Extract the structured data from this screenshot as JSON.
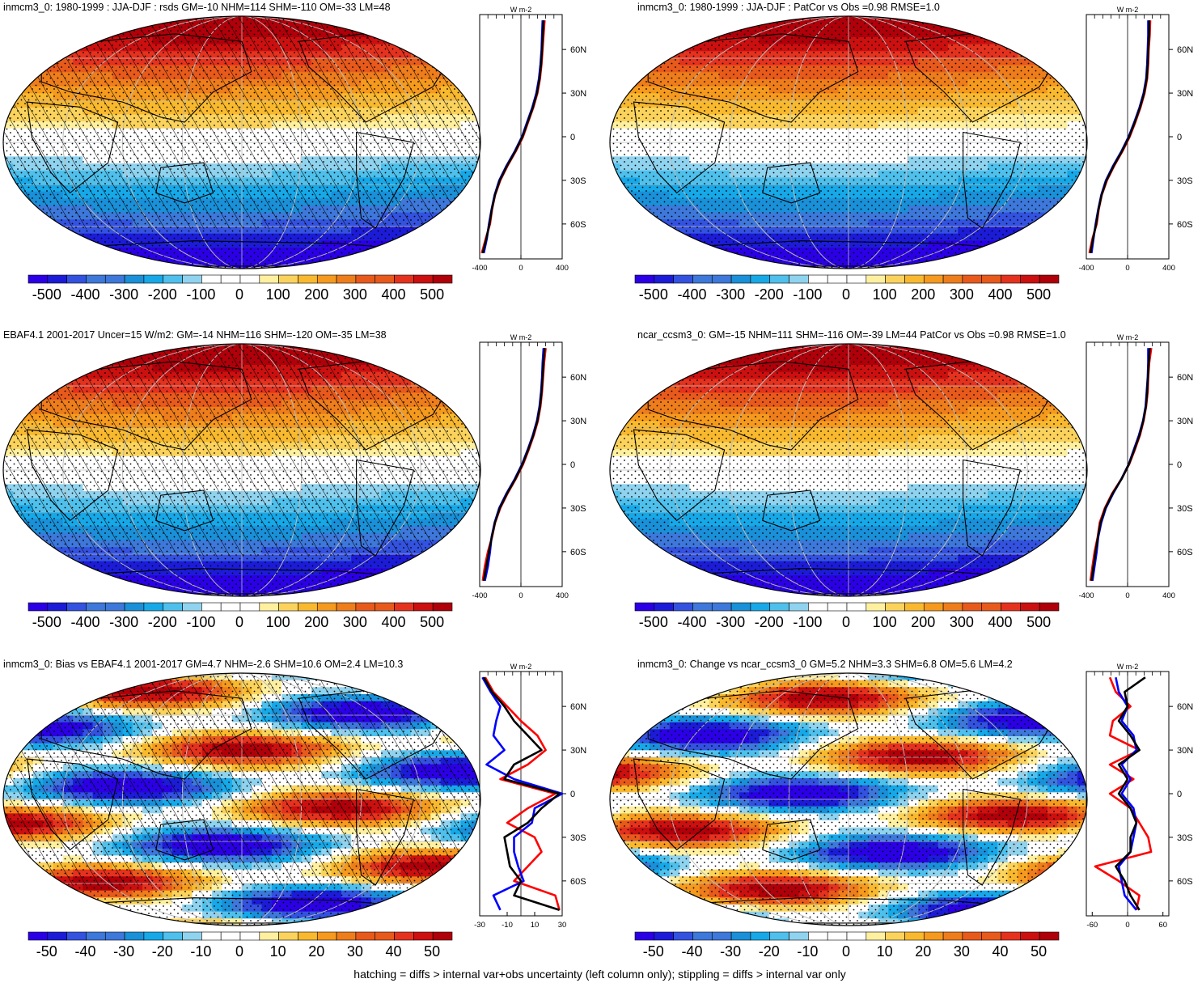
{
  "colors": {
    "palette": [
      "#2b00e6",
      "#1c1cd8",
      "#3352e0",
      "#3d78da",
      "#1a90d8",
      "#17a8e8",
      "#4fc0ec",
      "#8fd3ef",
      "#ffffff",
      "#ffffff",
      "#fff0a0",
      "#fbd35c",
      "#f9b92f",
      "#f59a1e",
      "#ee7d1c",
      "#e85a1c",
      "#e5321e",
      "#cc1010",
      "#b0000a"
    ],
    "hatch": "#000000",
    "grid": "#bbbbbb",
    "line_obs": "#0000ff",
    "line_model": "#ff0000",
    "line_ens": "#000000"
  },
  "footer": "hatching = diffs > internal var+obs uncertainty (left column only); stippling = diffs > internal var only",
  "chart_data": [
    {
      "type": "heatmap",
      "title": "inmcm3_0: 1980-1999 : JJA-DJF : rsds GM=-10 NHM=114 SHM=-110 OM=-33 LM=48",
      "colorbar_ticks": [
        "-500",
        "-400",
        "-300",
        "-200",
        "-100",
        "0",
        "100",
        "200",
        "300",
        "400",
        "500"
      ],
      "pattern": "hatch+stipple",
      "zonal": {
        "unit": "W m-2",
        "xlim": [
          -400,
          400
        ],
        "xticks": [
          "-400",
          "0",
          "400"
        ],
        "yticks": [
          "60N",
          "30N",
          "0",
          "30S",
          "60S"
        ],
        "lat": [
          80,
          70,
          60,
          50,
          40,
          30,
          20,
          10,
          0,
          -10,
          -20,
          -30,
          -40,
          -50,
          -60,
          -70,
          -80
        ],
        "series": [
          {
            "color": "#ff0000",
            "values": [
              230,
              220,
              210,
              200,
              185,
              160,
              120,
              70,
              20,
              -50,
              -130,
              -200,
              -250,
              -280,
              -300,
              -340,
              -380
            ]
          },
          {
            "color": "#0000ff",
            "values": [
              210,
              205,
              200,
              190,
              175,
              150,
              110,
              60,
              10,
              -60,
              -140,
              -210,
              -255,
              -285,
              -310,
              -330,
              -360
            ]
          },
          {
            "color": "#000000",
            "values": [
              220,
              212,
              205,
              195,
              180,
              155,
              115,
              65,
              15,
              -55,
              -135,
              -205,
              -252,
              -282,
              -305,
              -335,
              -370
            ]
          }
        ]
      }
    },
    {
      "type": "heatmap",
      "title": "inmcm3_0: 1980-1999 : JJA-DJF : PatCor vs Obs =0.98 RMSE=1.0",
      "colorbar_ticks": [
        "-500",
        "-400",
        "-300",
        "-200",
        "-100",
        "0",
        "100",
        "200",
        "300",
        "400",
        "500"
      ],
      "pattern": "stipple",
      "zonal": {
        "unit": "W m-2",
        "xlim": [
          -400,
          400
        ],
        "xticks": [
          "-400",
          "0",
          "400"
        ],
        "yticks": [
          "60N",
          "30N",
          "0",
          "30S",
          "60S"
        ],
        "lat": [
          80,
          70,
          60,
          50,
          40,
          30,
          20,
          10,
          0,
          -10,
          -20,
          -30,
          -40,
          -50,
          -60,
          -70,
          -80
        ],
        "series": [
          {
            "color": "#ff0000",
            "values": [
              220,
              215,
              205,
              200,
              190,
              165,
              125,
              75,
              20,
              -50,
              -130,
              -200,
              -250,
              -280,
              -300,
              -340,
              -370
            ]
          },
          {
            "color": "#0000ff",
            "values": [
              200,
              200,
              195,
              190,
              180,
              155,
              115,
              65,
              10,
              -60,
              -140,
              -210,
              -255,
              -285,
              -310,
              -330,
              -350
            ]
          },
          {
            "color": "#000000",
            "values": [
              210,
              208,
              200,
              195,
              185,
              160,
              120,
              70,
              15,
              -55,
              -135,
              -205,
              -252,
              -282,
              -305,
              -335,
              -360
            ]
          }
        ]
      }
    },
    {
      "type": "heatmap",
      "title": "EBAF4.1 2001-2017 Uncer=15 W/m2: GM=-14 NHM=116 SHM=-120 OM=-35 LM=38",
      "colorbar_ticks": [
        "-500",
        "-400",
        "-300",
        "-200",
        "-100",
        "0",
        "100",
        "200",
        "300",
        "400",
        "500"
      ],
      "pattern": "hatch+stipple",
      "zonal": {
        "unit": "W m-2",
        "xlim": [
          -400,
          400
        ],
        "xticks": [
          "-400",
          "0",
          "400"
        ],
        "yticks": [
          "60N",
          "30N",
          "0",
          "30S",
          "60S"
        ],
        "lat": [
          80,
          70,
          60,
          50,
          40,
          30,
          20,
          10,
          0,
          -10,
          -20,
          -30,
          -40,
          -50,
          -60,
          -70,
          -80
        ],
        "series": [
          {
            "color": "#ff0000",
            "values": [
              240,
              225,
              215,
              205,
              190,
              165,
              125,
              75,
              20,
              -50,
              -130,
              -200,
              -250,
              -280,
              -320,
              -350,
              -370
            ]
          },
          {
            "color": "#0000ff",
            "values": [
              220,
              210,
              205,
              195,
              180,
              155,
              115,
              65,
              10,
              -60,
              -140,
              -210,
              -255,
              -285,
              -300,
              -320,
              -350
            ]
          },
          {
            "color": "#000000",
            "values": [
              230,
              218,
              210,
              200,
              185,
              160,
              120,
              70,
              15,
              -55,
              -135,
              -205,
              -252,
              -282,
              -310,
              -335,
              -360
            ]
          }
        ]
      }
    },
    {
      "type": "heatmap",
      "title": "ncar_ccsm3_0: GM=-15 NHM=111 SHM=-116 OM=-39 LM=44 PatCor vs Obs =0.98 RMSE=1.0",
      "colorbar_ticks": [
        "-500",
        "-400",
        "-300",
        "-200",
        "-100",
        "0",
        "100",
        "200",
        "300",
        "400",
        "500"
      ],
      "pattern": "stipple",
      "zonal": {
        "unit": "W m-2",
        "xlim": [
          -400,
          400
        ],
        "xticks": [
          "-400",
          "0",
          "400"
        ],
        "yticks": [
          "60N",
          "30N",
          "0",
          "30S",
          "60S"
        ],
        "lat": [
          80,
          70,
          60,
          50,
          40,
          30,
          20,
          10,
          0,
          -10,
          -20,
          -30,
          -40,
          -50,
          -60,
          -70,
          -80
        ],
        "series": [
          {
            "color": "#ff0000",
            "values": [
              230,
              210,
              200,
              195,
              180,
              155,
              120,
              70,
              15,
              -60,
              -150,
              -220,
              -270,
              -290,
              -320,
              -340,
              -360
            ]
          },
          {
            "color": "#0000ff",
            "values": [
              200,
              200,
              195,
              185,
              175,
              150,
              110,
              60,
              10,
              -60,
              -140,
              -210,
              -255,
              -285,
              -300,
              -320,
              -340
            ]
          },
          {
            "color": "#000000",
            "values": [
              215,
              205,
              198,
              190,
              178,
              152,
              115,
              65,
              12,
              -58,
              -145,
              -215,
              -262,
              -288,
              -310,
              -330,
              -350
            ]
          }
        ]
      }
    },
    {
      "type": "heatmap",
      "title": "inmcm3_0: Bias vs EBAF4.1 2001-2017 GM=4.7 NHM=-2.6 SHM=10.6 OM=2.4 LM=10.3",
      "colorbar_ticks": [
        "-50",
        "-40",
        "-30",
        "-20",
        "-10",
        "0",
        "10",
        "20",
        "30",
        "40",
        "50"
      ],
      "pattern": "hatch+stipple",
      "zonal": {
        "unit": "W m-2",
        "xlim": [
          -30,
          30
        ],
        "xticks": [
          "-30",
          "-10",
          "10",
          "30"
        ],
        "yticks": [
          "60N",
          "30N",
          "0",
          "30S",
          "60S"
        ],
        "lat": [
          80,
          70,
          60,
          50,
          40,
          30,
          20,
          10,
          0,
          -10,
          -20,
          -30,
          -40,
          -50,
          -60,
          -70,
          -80
        ],
        "series": [
          {
            "color": "#ff0000",
            "values": [
              -26,
              -20,
              -10,
              0,
              12,
              18,
              5,
              -15,
              25,
              5,
              -10,
              10,
              15,
              5,
              -5,
              25,
              28
            ]
          },
          {
            "color": "#0000ff",
            "values": [
              -28,
              -22,
              -15,
              -18,
              -20,
              -12,
              -25,
              -5,
              30,
              10,
              8,
              -5,
              -5,
              -2,
              2,
              -20,
              -15
            ]
          },
          {
            "color": "#000000",
            "values": [
              -27,
              -21,
              -12,
              -5,
              5,
              15,
              -5,
              -12,
              28,
              15,
              5,
              -12,
              -10,
              -8,
              0,
              -5,
              28
            ]
          }
        ]
      }
    },
    {
      "type": "heatmap",
      "title": "inmcm3_0: Change vs ncar_ccsm3_0 GM=5.2 NHM=3.3 SHM=6.8 OM=5.6 LM=4.2",
      "colorbar_ticks": [
        "-50",
        "-40",
        "-30",
        "-20",
        "-10",
        "0",
        "10",
        "20",
        "30",
        "40",
        "50"
      ],
      "pattern": "stipple",
      "zonal": {
        "unit": "W m-2",
        "xlim": [
          -70,
          70
        ],
        "xticks": [
          "-60",
          "0",
          "60"
        ],
        "yticks": [
          "60N",
          "30N",
          "0",
          "30S",
          "60S"
        ],
        "lat": [
          80,
          70,
          60,
          50,
          40,
          30,
          20,
          10,
          0,
          -10,
          -20,
          -30,
          -40,
          -50,
          -60,
          -70,
          -80
        ],
        "series": [
          {
            "color": "#ff0000",
            "values": [
              -30,
              -20,
              5,
              -25,
              -30,
              20,
              -30,
              10,
              -30,
              5,
              20,
              35,
              40,
              -55,
              -15,
              20,
              15
            ]
          },
          {
            "color": "#0000ff",
            "values": [
              -20,
              -15,
              0,
              -10,
              10,
              15,
              -10,
              5,
              -10,
              10,
              15,
              10,
              5,
              -15,
              -10,
              -5,
              15
            ]
          },
          {
            "color": "#000000",
            "values": [
              30,
              -5,
              0,
              -15,
              5,
              20,
              -15,
              0,
              -15,
              5,
              15,
              5,
              5,
              -20,
              -5,
              5,
              20
            ]
          }
        ]
      }
    }
  ]
}
